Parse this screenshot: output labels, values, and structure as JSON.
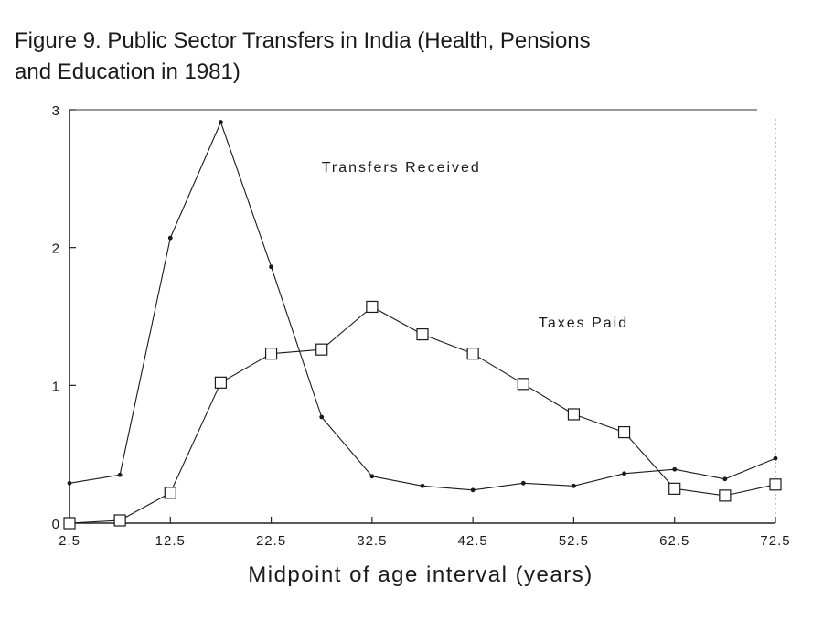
{
  "chart_data": {
    "type": "line",
    "title_line1": "Figure 9. Public Sector Transfers in India (Health, Pensions",
    "title_line2": "and Education in 1981)",
    "xlabel": "Midpoint of age interval (years)",
    "ylabel": "",
    "xlim": [
      2.5,
      72.5
    ],
    "ylim": [
      0,
      3
    ],
    "x": [
      2.5,
      7.5,
      12.5,
      17.5,
      22.5,
      27.5,
      32.5,
      37.5,
      42.5,
      47.5,
      52.5,
      57.5,
      62.5,
      67.5,
      72.5
    ],
    "x_ticks": [
      "2.5",
      "12.5",
      "22.5",
      "32.5",
      "42.5",
      "52.5",
      "62.5",
      "72.5"
    ],
    "x_tick_values": [
      2.5,
      12.5,
      22.5,
      32.5,
      42.5,
      52.5,
      62.5,
      72.5
    ],
    "y_ticks": [
      "0",
      "1",
      "2",
      "3"
    ],
    "y_tick_values": [
      0,
      1,
      2,
      3
    ],
    "grid": false,
    "series": [
      {
        "name": "Transfers Received",
        "marker": "dot",
        "values": [
          0.29,
          0.35,
          2.07,
          2.91,
          1.86,
          0.77,
          0.34,
          0.27,
          0.24,
          0.29,
          0.27,
          0.36,
          0.39,
          0.32,
          0.47
        ],
        "label_x": 27.5,
        "label_y": 2.55
      },
      {
        "name": "Taxes Paid",
        "marker": "square",
        "values": [
          0.0,
          0.02,
          0.22,
          1.02,
          1.23,
          1.26,
          1.57,
          1.37,
          1.23,
          1.01,
          0.79,
          0.66,
          0.25,
          0.2,
          0.28
        ],
        "label_x": 49.0,
        "label_y": 1.42
      }
    ]
  }
}
